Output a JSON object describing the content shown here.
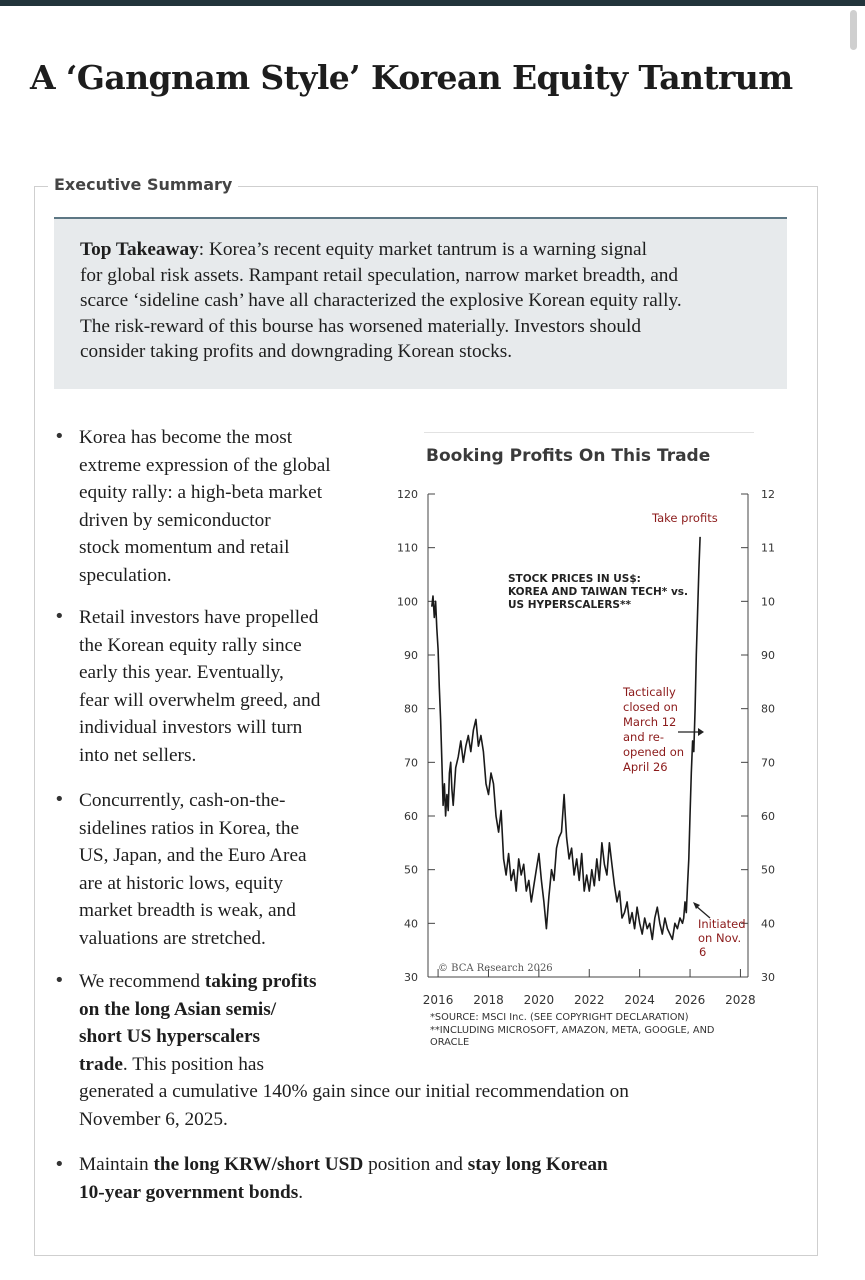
{
  "title": "A ‘Gangnam Style’ Korean Equity Tantrum",
  "section_label": "Executive Summary",
  "takeaway": {
    "label": "Top Takeaway",
    "lines": [
      ": Korea’s recent equity market tantrum is a warning signal",
      "for global risk assets. Rampant retail speculation, narrow market breadth, and",
      "scarce ‘sideline cash’ have all characterized the explosive Korean equity rally.",
      "The risk-reward of this bourse has worsened materially. Investors should",
      "consider taking profits and downgrading Korean stocks."
    ]
  },
  "bullets": {
    "b1": [
      "Korea has become the most",
      "extreme expression of the global",
      "equity rally: a high-beta market",
      "driven by semiconductor",
      "stock momentum and retail",
      "speculation."
    ],
    "b2": [
      "Retail investors have propelled",
      "the Korean equity rally since",
      "early this year. Eventually,",
      "fear will overwhelm greed, and",
      "individual investors will turn",
      "into net sellers."
    ],
    "b3": [
      "Concurrently, cash-on-the-",
      "sidelines ratios in Korea, the",
      "US, Japan, and the Euro Area",
      "are at historic lows, equity",
      "market breadth is weak, and",
      "valuations are stretched."
    ],
    "b4": {
      "l1_a": "We recommend ",
      "l1_b": "taking profits",
      "l2": "on the long Asian semis/",
      "l3": "short US hyperscalers",
      "l4_a": "trade",
      "l4_b": ". This position has",
      "l5": "generated a cumulative 140% gain since our initial recommendation on",
      "l6": "November 6, 2025."
    },
    "b5": {
      "a": "Maintain ",
      "b": "the long KRW/short USD",
      "c": " position and ",
      "d": "stay long Korean",
      "e": "10-year government bonds",
      "f": "."
    }
  },
  "chart_data": {
    "type": "line",
    "title": "Booking Profits On This Trade",
    "inner_label": [
      "STOCK PRICES IN US$:",
      "KOREA AND TAIWAN TECH* vs.",
      "US HYPERSCALERS**"
    ],
    "x_ticks": [
      "2016",
      "2018",
      "2020",
      "2022",
      "2024",
      "2026",
      "2028"
    ],
    "xlim": [
      2015.6,
      2028.3
    ],
    "ylim": [
      30,
      120
    ],
    "y_ticks": [
      "30",
      "40",
      "50",
      "60",
      "70",
      "80",
      "90",
      "100",
      "110",
      "120"
    ],
    "annotations": {
      "take_profits": "Take profits",
      "tactically": [
        "Tactically",
        "closed on",
        "March 12",
        "and re-",
        "opened on",
        "April 26"
      ],
      "initiated": [
        "Initiated",
        "on Nov.",
        "6"
      ]
    },
    "copyright": "© BCA Research 2026",
    "series": [
      {
        "color": "#1a1a1a",
        "points": [
          [
            2015.75,
            99
          ],
          [
            2015.8,
            101
          ],
          [
            2015.85,
            97
          ],
          [
            2015.9,
            100
          ],
          [
            2015.95,
            95
          ],
          [
            2016.0,
            91
          ],
          [
            2016.05,
            84
          ],
          [
            2016.1,
            78
          ],
          [
            2016.15,
            70
          ],
          [
            2016.2,
            62
          ],
          [
            2016.25,
            66
          ],
          [
            2016.3,
            60
          ],
          [
            2016.35,
            64
          ],
          [
            2016.4,
            61
          ],
          [
            2016.45,
            68
          ],
          [
            2016.5,
            70
          ],
          [
            2016.55,
            65
          ],
          [
            2016.6,
            62
          ],
          [
            2016.7,
            69
          ],
          [
            2016.8,
            71
          ],
          [
            2016.9,
            74
          ],
          [
            2017.0,
            70
          ],
          [
            2017.1,
            73
          ],
          [
            2017.2,
            75
          ],
          [
            2017.3,
            72
          ],
          [
            2017.4,
            76
          ],
          [
            2017.5,
            78
          ],
          [
            2017.6,
            73
          ],
          [
            2017.7,
            75
          ],
          [
            2017.8,
            72
          ],
          [
            2017.9,
            66
          ],
          [
            2018.0,
            64
          ],
          [
            2018.1,
            68
          ],
          [
            2018.2,
            66
          ],
          [
            2018.3,
            60
          ],
          [
            2018.4,
            57
          ],
          [
            2018.5,
            61
          ],
          [
            2018.6,
            52
          ],
          [
            2018.7,
            49
          ],
          [
            2018.8,
            53
          ],
          [
            2018.9,
            48
          ],
          [
            2019.0,
            50
          ],
          [
            2019.1,
            46
          ],
          [
            2019.2,
            52
          ],
          [
            2019.3,
            49
          ],
          [
            2019.4,
            51
          ],
          [
            2019.5,
            46
          ],
          [
            2019.6,
            48
          ],
          [
            2019.7,
            44
          ],
          [
            2019.8,
            47
          ],
          [
            2019.9,
            50
          ],
          [
            2020.0,
            53
          ],
          [
            2020.1,
            48
          ],
          [
            2020.2,
            44
          ],
          [
            2020.3,
            39
          ],
          [
            2020.4,
            45
          ],
          [
            2020.5,
            50
          ],
          [
            2020.6,
            48
          ],
          [
            2020.7,
            54
          ],
          [
            2020.8,
            56
          ],
          [
            2020.9,
            57
          ],
          [
            2021.0,
            64
          ],
          [
            2021.05,
            60
          ],
          [
            2021.1,
            56
          ],
          [
            2021.2,
            52
          ],
          [
            2021.3,
            54
          ],
          [
            2021.4,
            49
          ],
          [
            2021.5,
            52
          ],
          [
            2021.6,
            48
          ],
          [
            2021.7,
            53
          ],
          [
            2021.8,
            46
          ],
          [
            2021.9,
            49
          ],
          [
            2022.0,
            46
          ],
          [
            2022.1,
            50
          ],
          [
            2022.2,
            47
          ],
          [
            2022.3,
            52
          ],
          [
            2022.4,
            48
          ],
          [
            2022.5,
            55
          ],
          [
            2022.6,
            51
          ],
          [
            2022.7,
            49
          ],
          [
            2022.8,
            55
          ],
          [
            2022.9,
            51
          ],
          [
            2023.0,
            47
          ],
          [
            2023.1,
            44
          ],
          [
            2023.2,
            46
          ],
          [
            2023.3,
            41
          ],
          [
            2023.4,
            42
          ],
          [
            2023.5,
            44
          ],
          [
            2023.6,
            40
          ],
          [
            2023.7,
            42
          ],
          [
            2023.8,
            39
          ],
          [
            2023.9,
            43
          ],
          [
            2024.0,
            40
          ],
          [
            2024.1,
            38
          ],
          [
            2024.2,
            41
          ],
          [
            2024.3,
            39
          ],
          [
            2024.4,
            40
          ],
          [
            2024.5,
            37
          ],
          [
            2024.6,
            41
          ],
          [
            2024.7,
            43
          ],
          [
            2024.8,
            40
          ],
          [
            2024.9,
            38
          ],
          [
            2025.0,
            41
          ],
          [
            2025.1,
            39
          ],
          [
            2025.2,
            38
          ],
          [
            2025.3,
            37
          ],
          [
            2025.4,
            40
          ],
          [
            2025.5,
            39
          ],
          [
            2025.6,
            41
          ],
          [
            2025.7,
            40
          ],
          [
            2025.75,
            41
          ],
          [
            2025.8,
            44
          ],
          [
            2025.85,
            42
          ],
          [
            2025.9,
            47
          ],
          [
            2025.95,
            52
          ],
          [
            2026.0,
            60
          ],
          [
            2026.05,
            68
          ],
          [
            2026.1,
            74
          ],
          [
            2026.15,
            72
          ],
          [
            2026.2,
            80
          ],
          [
            2026.25,
            90
          ],
          [
            2026.3,
            98
          ],
          [
            2026.35,
            106
          ],
          [
            2026.4,
            112
          ]
        ]
      }
    ]
  },
  "footnote": [
    "*SOURCE: MSCI Inc. (SEE COPYRIGHT DECLARATION)",
    "**INCLUDING MICROSOFT, AMAZON, META, GOOGLE, AND",
    "ORACLE"
  ],
  "colors": {
    "annotation": "#8b1a1a",
    "line": "#1a1a1a",
    "takeaway_bg": "#e7eaec",
    "rule": "#5d7784"
  }
}
